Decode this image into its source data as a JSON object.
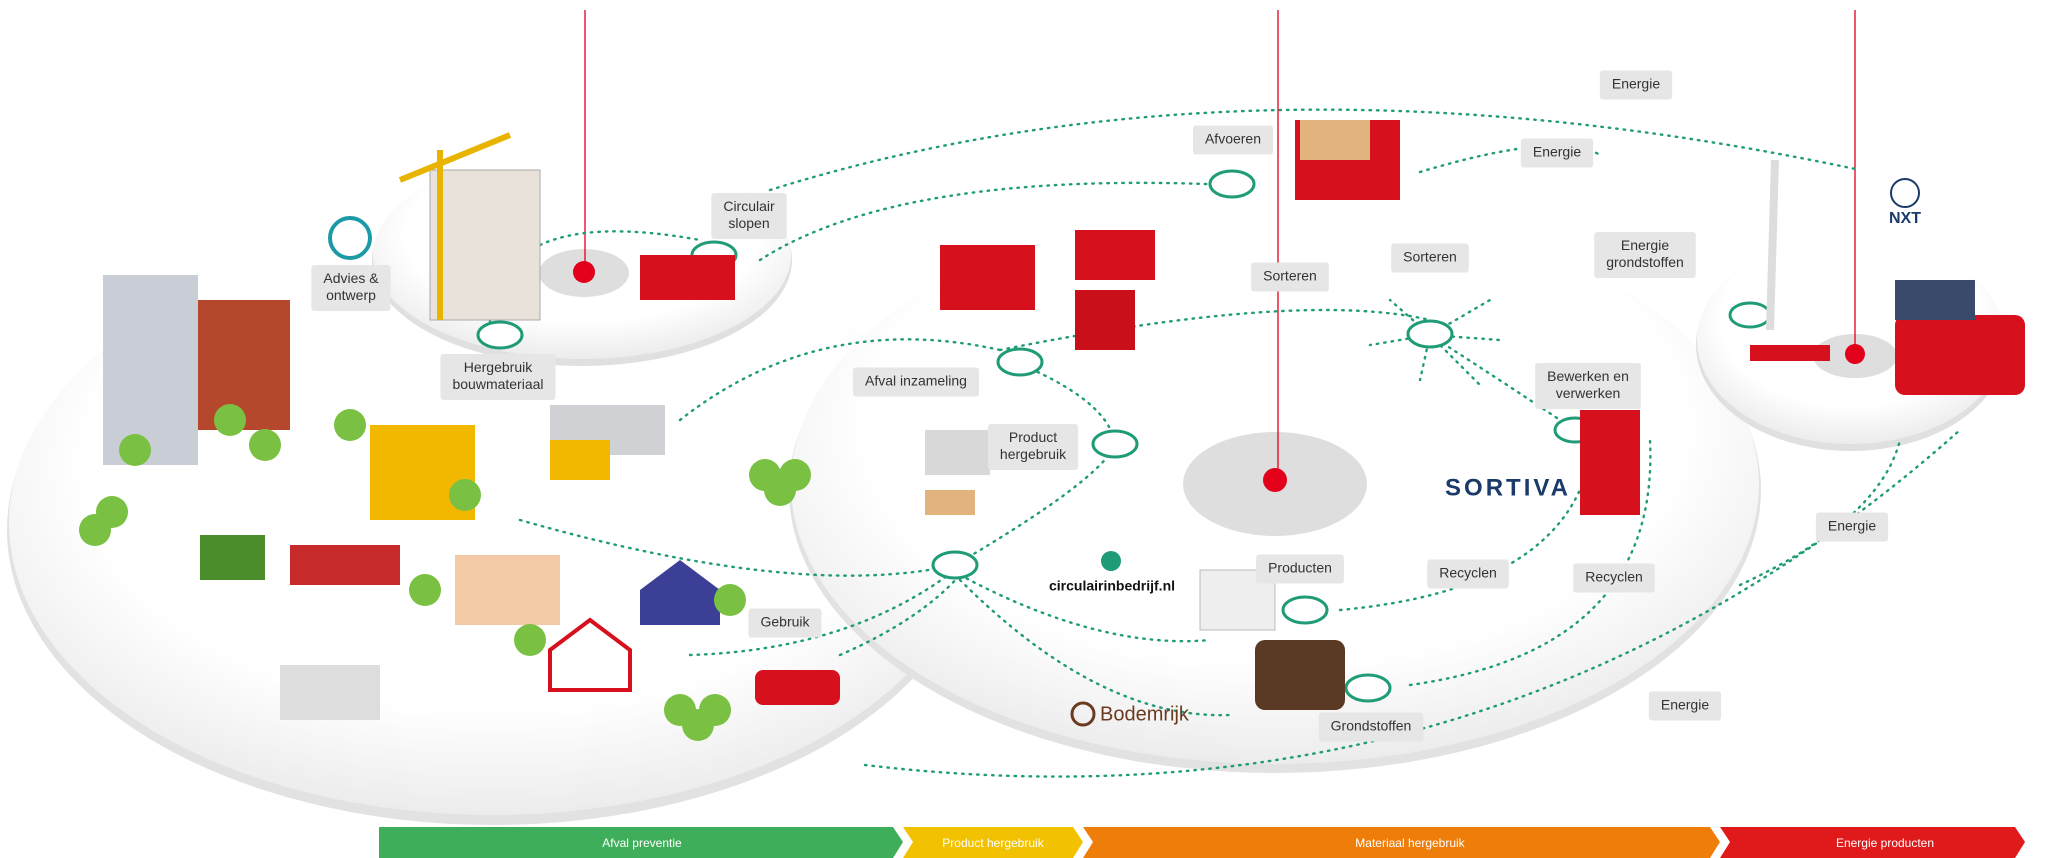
{
  "labels": [
    {
      "lines": [
        "Energie"
      ]
    },
    {
      "lines": [
        "Energie"
      ]
    },
    {
      "lines": [
        "Afvoeren"
      ]
    },
    {
      "lines": [
        "Circulair",
        "slopen"
      ]
    },
    {
      "lines": [
        "Advies &",
        "ontwerp"
      ]
    },
    {
      "lines": [
        "Hergebruik",
        "bouwmateriaal"
      ]
    },
    {
      "lines": [
        "Sorteren"
      ]
    },
    {
      "lines": [
        "Sorteren"
      ]
    },
    {
      "lines": [
        "Energie",
        "grondstoffen"
      ]
    },
    {
      "lines": [
        "Afval inzameling"
      ]
    },
    {
      "lines": [
        "Product",
        "hergebruik"
      ]
    },
    {
      "lines": [
        "Bewerken en",
        "verwerken"
      ]
    },
    {
      "lines": [
        "Energie"
      ]
    },
    {
      "lines": [
        "Recyclen"
      ]
    },
    {
      "lines": [
        "Recyclen"
      ]
    },
    {
      "lines": [
        "Producten"
      ]
    },
    {
      "lines": [
        "Gebruik"
      ]
    },
    {
      "lines": [
        "Grondstoffen"
      ]
    },
    {
      "lines": [
        "Energie"
      ]
    }
  ],
  "logos": {
    "nxt": "NXT",
    "sortiva": "SORTIVA",
    "circulair": "circulairinbedrijf.nl",
    "bodemrijk": "Bodemrijk"
  },
  "phases": [
    "Afval preventie",
    "Product hergebruik",
    "Materiaal hergebruik",
    "Energie producten"
  ]
}
